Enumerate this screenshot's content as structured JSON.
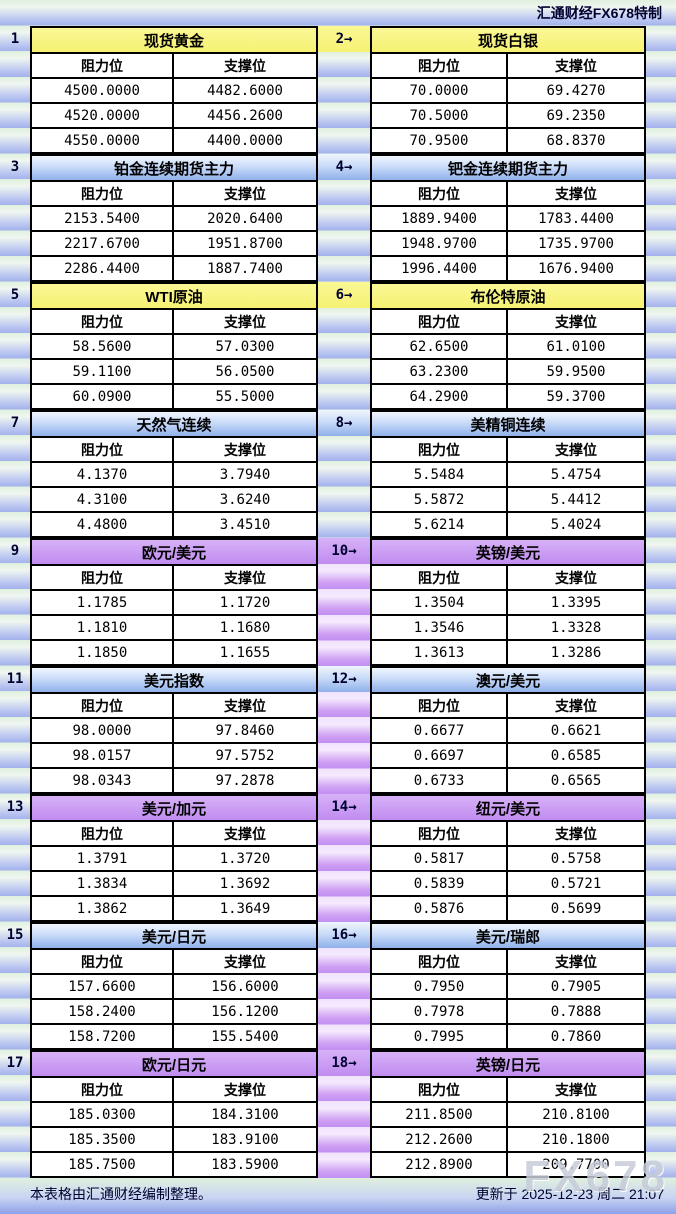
{
  "header": {
    "title": "汇通财经FX678特制"
  },
  "labels": {
    "resistance": "阻力位",
    "support": "支撑位"
  },
  "footer": {
    "note": "本表格由汇通财经编制整理。",
    "updated": "更新于 2025-12-23 周二 21:07",
    "watermark": "FX678"
  },
  "colors": {
    "header_yellow": "#f6f173",
    "header_blue_top": "#f0f6ff",
    "header_blue_bottom": "#8fb0ea",
    "header_purple": "#c18cf0",
    "stripe_green": "#dff0df",
    "stripe_blue": "#a3b1ec",
    "gutter_purple": "#c28ff1",
    "label_navy": "#000030",
    "border_black": "#000000",
    "watermark_gray": "#c6ccd9"
  },
  "panels": [
    {
      "num": "1",
      "title": "现货黄金",
      "theme": "yellow",
      "rows": [
        [
          "4500.0000",
          "4482.6000"
        ],
        [
          "4520.0000",
          "4456.2600"
        ],
        [
          "4550.0000",
          "4400.0000"
        ]
      ]
    },
    {
      "num": "2→",
      "title": "现货白银",
      "theme": "yellow",
      "rows": [
        [
          "70.0000",
          "69.4270"
        ],
        [
          "70.5000",
          "69.2350"
        ],
        [
          "70.9500",
          "68.8370"
        ]
      ]
    },
    {
      "num": "3",
      "title": "铂金连续期货主力",
      "theme": "blue",
      "rows": [
        [
          "2153.5400",
          "2020.6400"
        ],
        [
          "2217.6700",
          "1951.8700"
        ],
        [
          "2286.4400",
          "1887.7400"
        ]
      ]
    },
    {
      "num": "4→",
      "title": "钯金连续期货主力",
      "theme": "blue",
      "rows": [
        [
          "1889.9400",
          "1783.4400"
        ],
        [
          "1948.9700",
          "1735.9700"
        ],
        [
          "1996.4400",
          "1676.9400"
        ]
      ]
    },
    {
      "num": "5",
      "title": "WTI原油",
      "theme": "yellow",
      "rows": [
        [
          "58.5600",
          "57.0300"
        ],
        [
          "59.1100",
          "56.0500"
        ],
        [
          "60.0900",
          "55.5000"
        ]
      ]
    },
    {
      "num": "6→",
      "title": "布伦特原油",
      "theme": "yellow",
      "rows": [
        [
          "62.6500",
          "61.0100"
        ],
        [
          "63.2300",
          "59.9500"
        ],
        [
          "64.2900",
          "59.3700"
        ]
      ]
    },
    {
      "num": "7",
      "title": "天然气连续",
      "theme": "blue",
      "rows": [
        [
          "4.1370",
          "3.7940"
        ],
        [
          "4.3100",
          "3.6240"
        ],
        [
          "4.4800",
          "3.4510"
        ]
      ]
    },
    {
      "num": "8→",
      "title": "美精铜连续",
      "theme": "blue",
      "rows": [
        [
          "5.5484",
          "5.4754"
        ],
        [
          "5.5872",
          "5.4412"
        ],
        [
          "5.6214",
          "5.4024"
        ]
      ]
    },
    {
      "num": "9",
      "title": "欧元/美元",
      "theme": "purple",
      "rows": [
        [
          "1.1785",
          "1.1720"
        ],
        [
          "1.1810",
          "1.1680"
        ],
        [
          "1.1850",
          "1.1655"
        ]
      ]
    },
    {
      "num": "10→",
      "title": "英镑/美元",
      "theme": "purple",
      "rows": [
        [
          "1.3504",
          "1.3395"
        ],
        [
          "1.3546",
          "1.3328"
        ],
        [
          "1.3613",
          "1.3286"
        ]
      ]
    },
    {
      "num": "11",
      "title": "美元指数",
      "theme": "blue",
      "rows": [
        [
          "98.0000",
          "97.8460"
        ],
        [
          "98.0157",
          "97.5752"
        ],
        [
          "98.0343",
          "97.2878"
        ]
      ]
    },
    {
      "num": "12→",
      "title": "澳元/美元",
      "theme": "blue",
      "rows": [
        [
          "0.6677",
          "0.6621"
        ],
        [
          "0.6697",
          "0.6585"
        ],
        [
          "0.6733",
          "0.6565"
        ]
      ]
    },
    {
      "num": "13",
      "title": "美元/加元",
      "theme": "purple",
      "rows": [
        [
          "1.3791",
          "1.3720"
        ],
        [
          "1.3834",
          "1.3692"
        ],
        [
          "1.3862",
          "1.3649"
        ]
      ]
    },
    {
      "num": "14→",
      "title": "纽元/美元",
      "theme": "purple",
      "rows": [
        [
          "0.5817",
          "0.5758"
        ],
        [
          "0.5839",
          "0.5721"
        ],
        [
          "0.5876",
          "0.5699"
        ]
      ]
    },
    {
      "num": "15",
      "title": "美元/日元",
      "theme": "blue",
      "rows": [
        [
          "157.6600",
          "156.6000"
        ],
        [
          "158.2400",
          "156.1200"
        ],
        [
          "158.7200",
          "155.5400"
        ]
      ]
    },
    {
      "num": "16→",
      "title": "美元/瑞郎",
      "theme": "blue",
      "rows": [
        [
          "0.7950",
          "0.7905"
        ],
        [
          "0.7978",
          "0.7888"
        ],
        [
          "0.7995",
          "0.7860"
        ]
      ]
    },
    {
      "num": "17",
      "title": "欧元/日元",
      "theme": "purple",
      "rows": [
        [
          "185.0300",
          "184.3100"
        ],
        [
          "185.3500",
          "183.9100"
        ],
        [
          "185.7500",
          "183.5900"
        ]
      ]
    },
    {
      "num": "18→",
      "title": "英镑/日元",
      "theme": "purple",
      "rows": [
        [
          "211.8500",
          "210.8100"
        ],
        [
          "212.2600",
          "210.1800"
        ],
        [
          "212.8900",
          "209.7700"
        ]
      ]
    }
  ]
}
